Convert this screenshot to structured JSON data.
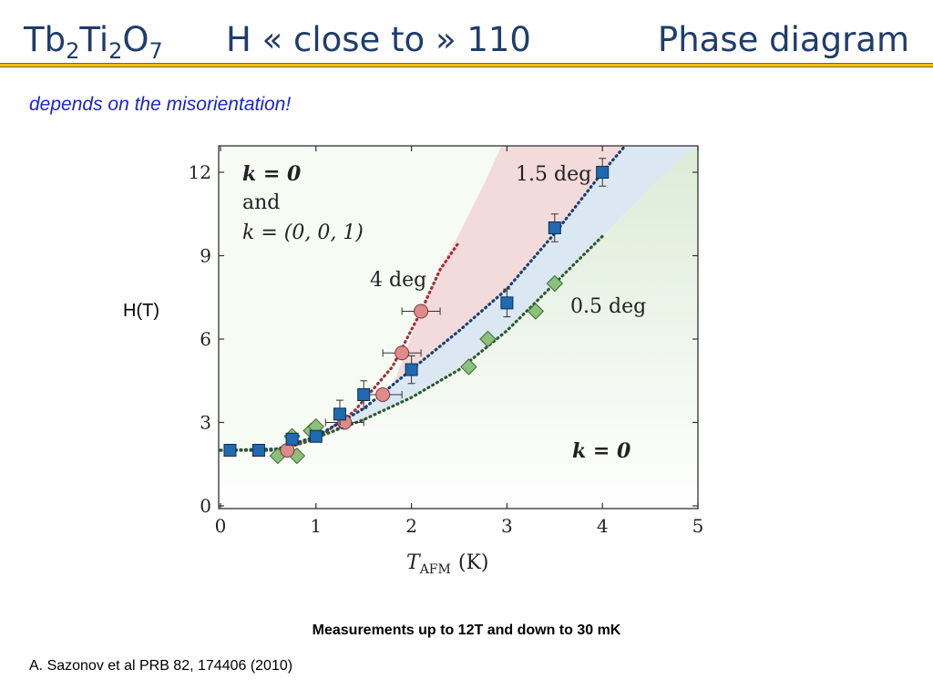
{
  "header": {
    "formula": {
      "t1": "Tb",
      "s1": "2",
      "t2": "Ti",
      "s2": "2",
      "t3": "O",
      "s3": "7"
    },
    "field_title": "H «  close to » 110",
    "phase_title": "Phase diagram"
  },
  "subtitle": "depends on the misorientation!",
  "y_label_outside": "H(T)",
  "caption": "Measurements up to 12T and down to 30 mK",
  "reference": "A. Sazonov et al PRB 82, 174406 (2010)",
  "colors": {
    "title": "#1f3d6b",
    "rule": "#f2c200",
    "subtitle": "#1a24c8",
    "region_4deg": "#f3d6d8",
    "region_1p5deg": "#d8e6f3",
    "region_0p5deg": "#dcebd6",
    "circle_fill": "#e08a8a",
    "square_fill": "#1f6ab0",
    "diamond_fill": "#8dc07a",
    "line_4deg": "#a0303a",
    "line_1p5deg": "#1f3f70",
    "line_0p5deg": "#2d5a2a"
  },
  "chart_data": {
    "type": "scatter",
    "xlabel": {
      "main": "T",
      "sub": "AFM",
      "unit": "(K)"
    },
    "xlim": [
      0,
      5
    ],
    "ylim": [
      0,
      13
    ],
    "xticks": [
      "0",
      "1",
      "2",
      "3",
      "4",
      "5"
    ],
    "yticks": [
      "0",
      "3",
      "6",
      "9",
      "12"
    ],
    "annotations": {
      "k0_top": "k = 0",
      "and": "and",
      "k001": "k = (0, 0, 1)",
      "deg4": "4 deg",
      "deg1p5": "1.5 deg",
      "deg0p5": "0.5 deg",
      "k0_bottom": "k = 0"
    },
    "series": [
      {
        "label": "4 deg",
        "marker": "circle",
        "points": [
          {
            "x": 0.7,
            "y": 2.0,
            "xerr": 0
          },
          {
            "x": 1.3,
            "y": 3.0,
            "xerr": 0.2
          },
          {
            "x": 1.7,
            "y": 4.0,
            "xerr": 0.2
          },
          {
            "x": 1.9,
            "y": 5.5,
            "xerr": 0.2
          },
          {
            "x": 2.1,
            "y": 7.0,
            "xerr": 0.2
          }
        ],
        "guide": [
          [
            0.0,
            2.0
          ],
          [
            0.6,
            2.0
          ],
          [
            1.0,
            2.4
          ],
          [
            1.4,
            3.4
          ],
          [
            1.8,
            5.0
          ],
          [
            2.1,
            7.0
          ],
          [
            2.3,
            8.5
          ],
          [
            2.5,
            9.5
          ]
        ]
      },
      {
        "label": "1.5 deg",
        "marker": "square",
        "points": [
          {
            "x": 0.1,
            "y": 2.0,
            "yerr": 0
          },
          {
            "x": 0.4,
            "y": 2.0,
            "yerr": 0
          },
          {
            "x": 0.75,
            "y": 2.4,
            "yerr": 0
          },
          {
            "x": 1.0,
            "y": 2.5,
            "yerr": 0
          },
          {
            "x": 1.25,
            "y": 3.3,
            "yerr": 0.5
          },
          {
            "x": 1.5,
            "y": 4.0,
            "yerr": 0.5
          },
          {
            "x": 2.0,
            "y": 4.9,
            "yerr": 0.5
          },
          {
            "x": 3.0,
            "y": 7.3,
            "yerr": 0.5
          },
          {
            "x": 3.5,
            "y": 10.0,
            "yerr": 0.5
          },
          {
            "x": 4.0,
            "y": 12.0,
            "yerr": 0.5
          }
        ],
        "guide": [
          [
            0.0,
            2.0
          ],
          [
            0.6,
            2.05
          ],
          [
            1.0,
            2.5
          ],
          [
            1.5,
            3.5
          ],
          [
            2.0,
            4.9
          ],
          [
            2.5,
            6.3
          ],
          [
            3.0,
            7.8
          ],
          [
            3.5,
            9.8
          ],
          [
            4.0,
            12.0
          ],
          [
            4.25,
            13.0
          ]
        ]
      },
      {
        "label": "0.5 deg",
        "marker": "diamond",
        "points": [
          {
            "x": 0.6,
            "y": 1.8
          },
          {
            "x": 0.75,
            "y": 2.5
          },
          {
            "x": 0.8,
            "y": 1.8
          },
          {
            "x": 0.95,
            "y": 2.7
          },
          {
            "x": 1.0,
            "y": 2.85
          },
          {
            "x": 2.6,
            "y": 5.0
          },
          {
            "x": 2.8,
            "y": 6.0
          },
          {
            "x": 3.3,
            "y": 7.0
          },
          {
            "x": 3.5,
            "y": 8.0
          }
        ],
        "guide": [
          [
            0.0,
            2.0
          ],
          [
            0.6,
            2.0
          ],
          [
            1.0,
            2.45
          ],
          [
            1.5,
            3.1
          ],
          [
            2.0,
            3.9
          ],
          [
            2.5,
            4.9
          ],
          [
            3.0,
            6.3
          ],
          [
            3.5,
            8.0
          ],
          [
            4.0,
            9.7
          ]
        ]
      }
    ]
  }
}
